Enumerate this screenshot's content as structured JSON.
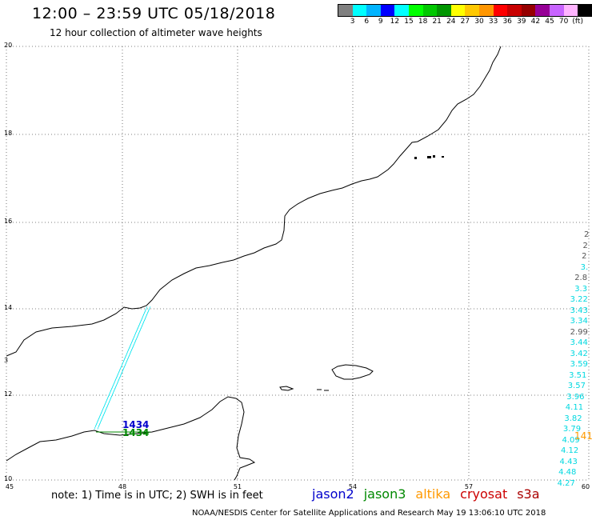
{
  "header": {
    "title": "12:00 – 23:59 UTC 05/18/2018",
    "subtitle": "12 hour collection of altimeter wave heights"
  },
  "colorbar": {
    "colors": [
      "#808080",
      "#00ffff",
      "#00b4ff",
      "#0000ff",
      "#00ffff",
      "#00ff00",
      "#00c800",
      "#009600",
      "#ffff00",
      "#ffc800",
      "#ff9600",
      "#ff0000",
      "#c80000",
      "#960000",
      "#960096",
      "#c864ff",
      "#ffb4ff",
      "#000000"
    ],
    "labels": [
      "3",
      "6",
      "9",
      "12",
      "15",
      "18",
      "21",
      "24",
      "27",
      "30",
      "33",
      "36",
      "39",
      "42",
      "45",
      "70",
      "(ft)"
    ]
  },
  "axes": {
    "lat_labels": [
      "20",
      "18",
      "16",
      "14",
      "12",
      "10"
    ],
    "lon_labels": [
      "45",
      "48",
      "51",
      "54",
      "57",
      "60"
    ],
    "side_label": "3"
  },
  "tracks": {
    "left_cluster_label_color": "#00e5ee",
    "jason2_time": "1434",
    "jason3_time": "1434",
    "right_values": [
      "2",
      "2",
      "2",
      "3.",
      "2.8",
      "3.3",
      "3.22",
      "3.43",
      "3.34",
      "2.99",
      "3.44",
      "3.42",
      "3.59",
      "3.51",
      "3.57",
      "3.96",
      "4.11",
      "3.82",
      "3.79",
      "4.09",
      "4.12",
      "4.43",
      "4.48",
      "4.27"
    ],
    "right_gray_indices": [
      0,
      1,
      2,
      4,
      9
    ],
    "altika_time": "141"
  },
  "note": "note: 1) Time is in UTC; 2) SWH is in feet",
  "legend": {
    "jason2": {
      "label": "jason2",
      "color": "#0000cc"
    },
    "jason3": {
      "label": "jason3",
      "color": "#008800"
    },
    "altika": {
      "label": "altika",
      "color": "#ff9900"
    },
    "cryosat": {
      "label": "cryosat",
      "color": "#cc0000"
    },
    "s3a": {
      "label": "s3a",
      "color": "#aa0000"
    }
  },
  "footer": "NOAA/NESDIS Center for Satellite Applications and Research    May 19 13:06:10 UTC 2018"
}
